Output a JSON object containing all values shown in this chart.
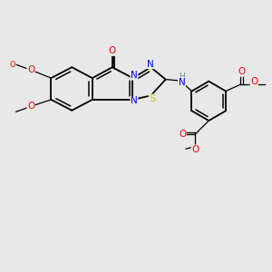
{
  "background_color": "#e8e8e8",
  "bond_color": "#000000",
  "atom_colors": {
    "C": "#000000",
    "N": "#0000ff",
    "O": "#ff0000",
    "S": "#cccc00",
    "H": "#4f9090"
  },
  "figsize": [
    3.0,
    3.0
  ],
  "dpi": 100
}
